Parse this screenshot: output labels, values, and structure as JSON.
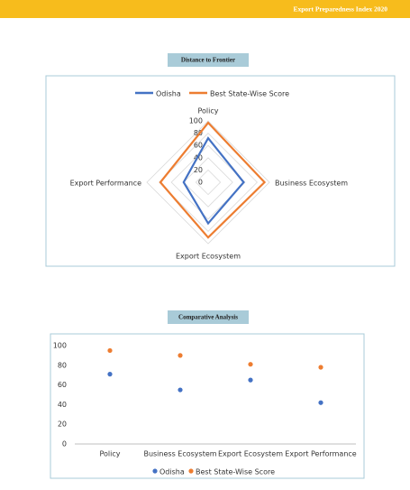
{
  "header": {
    "title": "Export Preparedness Index 2020"
  },
  "chart_data": [
    {
      "type": "radar",
      "title": "Distance to Frontier",
      "categories": [
        "Policy",
        "Business Ecosystem",
        "Export Ecosystem",
        "Export Performance"
      ],
      "series": [
        {
          "name": "Odisha",
          "color": "#4472c4",
          "values": [
            72,
            58,
            67,
            40
          ]
        },
        {
          "name": "Best State-Wise Score",
          "color": "#ed7d31",
          "values": [
            97,
            92,
            90,
            78
          ]
        }
      ],
      "rlim": [
        0,
        100
      ],
      "rticks": [
        0,
        20,
        40,
        60,
        80,
        100
      ]
    },
    {
      "type": "scatter",
      "title": "Comparative Analysis",
      "categories": [
        "Policy",
        "Business Ecosystem",
        "Export Ecosystem",
        "Export Performance"
      ],
      "series": [
        {
          "name": "Odisha",
          "color": "#4472c4",
          "values": [
            71,
            55,
            65,
            42
          ]
        },
        {
          "name": "Best State-Wise Score",
          "color": "#ed7d31",
          "values": [
            95,
            90,
            81,
            78
          ]
        }
      ],
      "ylim": [
        0,
        100
      ],
      "yticks": [
        0,
        20,
        40,
        60,
        80,
        100
      ]
    }
  ]
}
